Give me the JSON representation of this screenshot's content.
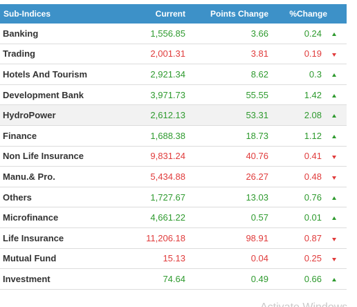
{
  "table": {
    "headers": {
      "name": "Sub-Indices",
      "current": "Current",
      "points_change": "Points Change",
      "percent_change": "%Change"
    },
    "rows": [
      {
        "name": "Banking",
        "current": "1,556.85",
        "points": "3.66",
        "percent": "0.24",
        "direction": "up"
      },
      {
        "name": "Trading",
        "current": "2,001.31",
        "points": "3.81",
        "percent": "0.19",
        "direction": "down"
      },
      {
        "name": "Hotels And Tourism",
        "current": "2,921.34",
        "points": "8.62",
        "percent": "0.3",
        "direction": "up"
      },
      {
        "name": "Development Bank",
        "current": "3,971.73",
        "points": "55.55",
        "percent": "1.42",
        "direction": "up"
      },
      {
        "name": "HydroPower",
        "current": "2,612.13",
        "points": "53.31",
        "percent": "2.08",
        "direction": "up"
      },
      {
        "name": "Finance",
        "current": "1,688.38",
        "points": "18.73",
        "percent": "1.12",
        "direction": "up"
      },
      {
        "name": "Non Life Insurance",
        "current": "9,831.24",
        "points": "40.76",
        "percent": "0.41",
        "direction": "down"
      },
      {
        "name": "Manu.& Pro.",
        "current": "5,434.88",
        "points": "26.27",
        "percent": "0.48",
        "direction": "down"
      },
      {
        "name": "Others",
        "current": "1,727.67",
        "points": "13.03",
        "percent": "0.76",
        "direction": "up"
      },
      {
        "name": "Microfinance",
        "current": "4,661.22",
        "points": "0.57",
        "percent": "0.01",
        "direction": "up"
      },
      {
        "name": "Life Insurance",
        "current": "11,206.18",
        "points": "98.91",
        "percent": "0.87",
        "direction": "down"
      },
      {
        "name": "Mutual Fund",
        "current": "15.13",
        "points": "0.04",
        "percent": "0.25",
        "direction": "down"
      },
      {
        "name": "Investment",
        "current": "74.64",
        "points": "0.49",
        "percent": "0.66",
        "direction": "up"
      }
    ]
  },
  "colors": {
    "header_bg": "#3d91c8",
    "up": "#2e9a2e",
    "down": "#e03b3b",
    "highlight_row": "#f2f2f2"
  },
  "highlighted_row": 4,
  "icons": {
    "up": "triangle-up-icon",
    "down": "triangle-down-icon"
  },
  "watermark": "Activate Windows"
}
